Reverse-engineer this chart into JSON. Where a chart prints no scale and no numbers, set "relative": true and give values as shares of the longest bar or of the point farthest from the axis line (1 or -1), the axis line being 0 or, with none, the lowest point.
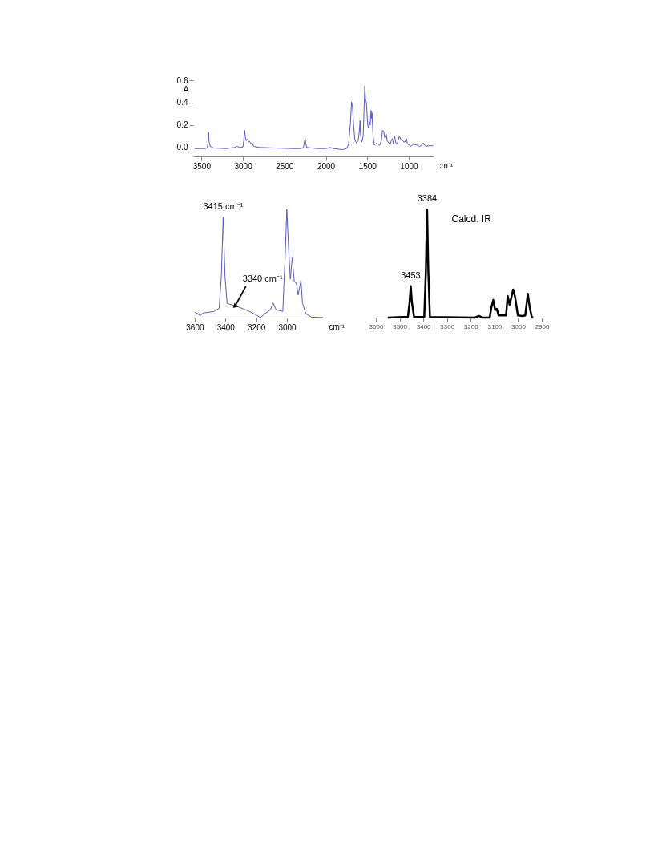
{
  "chart_data": [
    {
      "type": "line",
      "xlabel": "cm⁻¹",
      "ylabel": "A",
      "xlim": [
        3600,
        700
      ],
      "ylim": [
        -0.08,
        0.6
      ],
      "xticks": [
        3500,
        3000,
        2500,
        2000,
        1500,
        1000
      ],
      "yticks": [
        {
          "value": 0,
          "label": "0.0"
        },
        {
          "value": 0.2,
          "label": "0.2"
        },
        {
          "value": 0.4,
          "label": "0.4"
        },
        {
          "value": 0.6,
          "label": "0.6"
        }
      ],
      "x": [
        3585,
        3450,
        3430,
        3420,
        3415,
        3408,
        3395,
        3350,
        3200,
        3100,
        3070,
        3040,
        3000,
        2990,
        2980,
        2970,
        2960,
        2945,
        2930,
        2920,
        2905,
        2890,
        2870,
        2800,
        2600,
        2400,
        2300,
        2270,
        2255,
        2250,
        2243,
        2230,
        2100,
        2000,
        1950,
        1900,
        1800,
        1750,
        1725,
        1705,
        1690,
        1680,
        1665,
        1650,
        1630,
        1610,
        1595,
        1587,
        1580,
        1565,
        1550,
        1540,
        1530,
        1520,
        1510,
        1495,
        1485,
        1475,
        1465,
        1455,
        1448,
        1443,
        1430,
        1415,
        1400,
        1385,
        1370,
        1350,
        1330,
        1316,
        1300,
        1290,
        1272,
        1260,
        1240,
        1225,
        1210,
        1197,
        1185,
        1170,
        1155,
        1140,
        1113,
        1095,
        1080,
        1060,
        1045,
        1028,
        1015,
        990,
        970,
        943,
        925,
        900,
        870,
        850,
        825,
        810,
        790,
        760,
        705
      ],
      "series": [
        {
          "color": "#5a5ac0",
          "values": [
            -0.01,
            -0.01,
            0.0,
            0.05,
            0.135,
            0.05,
            0.01,
            -0.005,
            -0.01,
            0.0,
            0.01,
            0.0,
            0.005,
            0.06,
            0.155,
            0.09,
            0.06,
            0.075,
            0.05,
            0.055,
            0.035,
            0.04,
            0.01,
            0.0,
            -0.005,
            -0.01,
            -0.01,
            0.0,
            0.06,
            0.085,
            0.04,
            0.0,
            -0.01,
            -0.01,
            0.0,
            -0.01,
            -0.02,
            -0.01,
            0.03,
            0.2,
            0.405,
            0.38,
            0.2,
            0.07,
            0.04,
            0.06,
            0.15,
            0.24,
            0.1,
            0.05,
            0.1,
            0.3,
            0.55,
            0.42,
            0.4,
            0.2,
            0.17,
            0.23,
            0.2,
            0.33,
            0.26,
            0.31,
            0.1,
            0.02,
            0.03,
            0.04,
            0.03,
            0.02,
            0.06,
            0.155,
            0.14,
            0.09,
            0.12,
            0.06,
            0.04,
            0.03,
            0.06,
            0.08,
            0.03,
            0.1,
            0.04,
            0.03,
            0.1,
            0.07,
            0.07,
            0.05,
            0.05,
            0.08,
            0.03,
            0.02,
            0.01,
            0.03,
            0.025,
            0.02,
            0.01,
            0.015,
            0.04,
            0.02,
            0.01,
            0.015,
            0.015
          ]
        }
      ]
    },
    {
      "type": "line",
      "relative": true,
      "xlabel": "cm⁻¹",
      "xlim": [
        3610,
        2750
      ],
      "xticks": [
        3600,
        3400,
        3200,
        3000
      ],
      "x": [
        3600,
        3582,
        3565,
        3547,
        3477,
        3441,
        3427,
        3415,
        3403,
        3389,
        3336,
        3248,
        3195,
        3172,
        3142,
        3107,
        3090,
        3071,
        3054,
        3027,
        3010,
        3001,
        2989,
        2978,
        2966,
        2952,
        2939,
        2927,
        2909,
        2899,
        2878,
        2842,
        2763
      ],
      "series": [
        {
          "color": "#5a5ac0",
          "values": [
            0.05,
            0.037,
            0.017,
            0.042,
            0.056,
            0.086,
            0.38,
            0.926,
            0.38,
            0.13,
            0.11,
            0.06,
            0.02,
            0,
            0.037,
            0.074,
            0.135,
            0.074,
            0.066,
            0.057,
            0.63,
            1,
            0.63,
            0.356,
            0.553,
            0.33,
            0.32,
            0.21,
            0.344,
            0.135,
            0.037,
            0.005,
            0.0
          ]
        }
      ],
      "annotations": [
        {
          "text": "3415 cm⁻¹",
          "x": 3415,
          "y": 0.926
        },
        {
          "text": "3340 cm⁻¹",
          "x": 3336,
          "y": 0.11
        }
      ]
    },
    {
      "type": "line",
      "relative": true,
      "xlim": [
        3600,
        2890
      ],
      "xticks": [
        3600,
        3500,
        3400,
        3300,
        3200,
        3100,
        3000,
        2900
      ],
      "x": [
        3550,
        3465,
        3458,
        3453,
        3448,
        3439,
        3396,
        3389,
        3384,
        3379,
        3372,
        3182,
        3166,
        3151,
        3120,
        3113,
        3105,
        3097,
        3090,
        3082,
        3051,
        3044,
        3036,
        3028,
        3021,
        3013,
        3001,
        2982,
        2970,
        2959,
        2951,
        2942,
        2936
      ],
      "series": [
        {
          "color": "#000000",
          "values": [
            0,
            0.007,
            0.14,
            0.29,
            0.14,
            0.005,
            0.005,
            0.44,
            1,
            0.44,
            0.005,
            0,
            0.015,
            0,
            0,
            0.093,
            0.163,
            0.07,
            0.081,
            0.02,
            0.02,
            0.2,
            0.118,
            0.192,
            0.26,
            0.192,
            0.02,
            0.015,
            0.02,
            0.22,
            0.094,
            0,
            0
          ]
        }
      ],
      "annotations": [
        {
          "text": "3384",
          "x": 3384,
          "y": 1
        },
        {
          "text": "3453",
          "x": 3453,
          "y": 0.29
        },
        "Calcd. IR"
      ]
    }
  ]
}
